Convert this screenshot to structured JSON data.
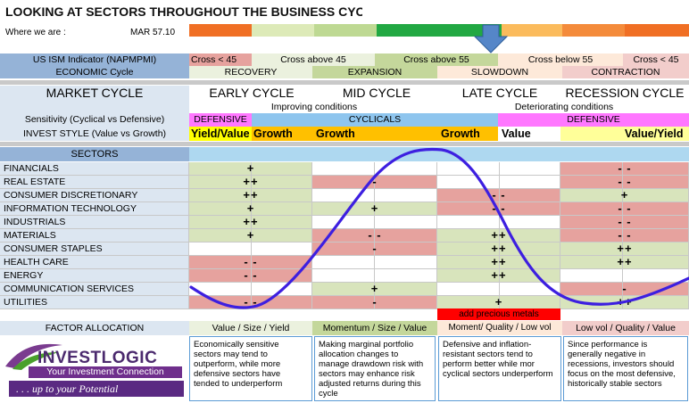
{
  "title": "LOOKING AT SECTORS THROUGHOUT THE BUSINESS CYCLE",
  "where_label": "Where we are :",
  "where_date": "MAR 57.10",
  "ism": {
    "label": "US ISM Indicator (NAPMPMI)",
    "cells": [
      "Cross < 45",
      "Cross above 45",
      "Cross above 55",
      "Cross below 55",
      "Cross < 45"
    ]
  },
  "economic": {
    "label": "ECONOMIC Cycle",
    "phases": [
      "RECOVERY",
      "EXPANSION",
      "SLOWDOWN",
      "CONTRACTION"
    ]
  },
  "market": {
    "label": "MARKET CYCLE",
    "phases": [
      "EARLY CYCLE",
      "MID CYCLE",
      "LATE CYCLE",
      "RECESSION CYCLE"
    ]
  },
  "conditions": [
    "Improving conditions",
    "Deteriorating conditions"
  ],
  "sensitivity": {
    "label": "Sensitivity (Cyclical vs Defensive)",
    "cells": [
      "DEFENSIVE",
      "CYCLICALS",
      "DEFENSIVE"
    ]
  },
  "invest_style": {
    "label": "INVEST STYLE (Value vs Growth)",
    "cells": [
      "Yield/Value",
      "Growth",
      "Growth",
      "Growth",
      "Value",
      "Value/Yield"
    ]
  },
  "sectors_header": "SECTORS",
  "sectors": [
    {
      "name": "FINANCIALS",
      "early": "+",
      "mid": "",
      "late": "",
      "rec": "- -"
    },
    {
      "name": "REAL ESTATE",
      "early": "++",
      "mid": "-",
      "late": "",
      "rec": "- -"
    },
    {
      "name": "CONSUMER DISCRETIONARY",
      "early": "++",
      "mid": "",
      "late": "- -",
      "rec": "+"
    },
    {
      "name": "INFORMATION TECHNOLOGY",
      "early": "+",
      "mid": "+",
      "late": "- -",
      "rec": "- -"
    },
    {
      "name": "INDUSTRIALS",
      "early": "++",
      "mid": "",
      "late": "",
      "rec": "- -"
    },
    {
      "name": "MATERIALS",
      "early": "+",
      "mid": "- -",
      "late": "++",
      "rec": "- -"
    },
    {
      "name": "CONSUMER STAPLES",
      "early": "",
      "mid": "-",
      "late": "++",
      "rec": "++"
    },
    {
      "name": "HEALTH CARE",
      "early": "- -",
      "mid": "",
      "late": "++",
      "rec": "++"
    },
    {
      "name": "ENERGY",
      "early": "- -",
      "mid": "",
      "late": "++",
      "rec": ""
    },
    {
      "name": "COMMUNICATION SERVICES",
      "early": "",
      "mid": "+",
      "late": "",
      "rec": "-"
    },
    {
      "name": "UTILITIES",
      "early": "- -",
      "mid": "-",
      "late": "+",
      "rec": "++"
    }
  ],
  "precious_metals": "add precious metals",
  "factor": {
    "label": "FACTOR ALLOCATION",
    "cells": [
      "Value / Size / Yield",
      "Momentum / Size / Value",
      "Moment/ Quality / Low vol",
      "Low vol / Quality / Value"
    ]
  },
  "notes": [
    "Economically sensitive sectors may tend to outperform, while more defensive sectors have tended to underperform",
    "Making marginal portfolio allocation changes to manage drawdown risk with sectors may enhance risk adjusted returns during this cycle",
    "Defensive and inflation-resistant sectors tend to perform better while mor cyclical sectors underperform",
    "Since performance is generally negative in recessions, investors should focus on the most defensive, historically stable sectors"
  ],
  "logo": {
    "brand": "INVESTLOGIC",
    "tagline": "Your Investment Connection",
    "slogan": ". . . up to your Potential"
  },
  "colors": {
    "green": "#d8e4bc",
    "red": "#e6a29e",
    "blue": "#95b3d7",
    "lightblue": "#dce6f1",
    "sky": "#aed8f0",
    "magenta": "#ff77ff",
    "yellow": "#ffc000",
    "curve": "#3d1fe0"
  }
}
